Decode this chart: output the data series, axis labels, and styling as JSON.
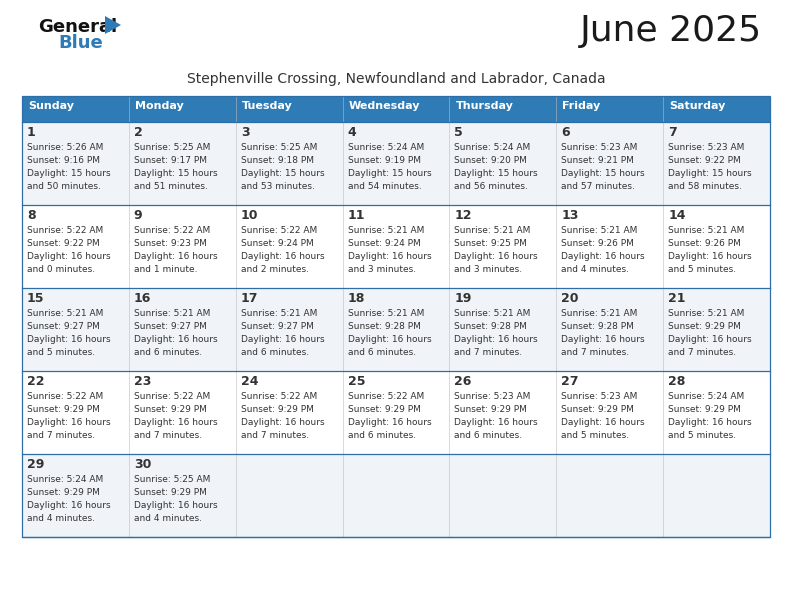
{
  "title": "June 2025",
  "subtitle": "Stephenville Crossing, Newfoundland and Labrador, Canada",
  "header_bg": "#2E7BB5",
  "header_text": "#FFFFFF",
  "row_bg_light": "#F0F4F8",
  "row_bg_white": "#FFFFFF",
  "border_color": "#2E6EA6",
  "text_color": "#333333",
  "days_of_week": [
    "Sunday",
    "Monday",
    "Tuesday",
    "Wednesday",
    "Thursday",
    "Friday",
    "Saturday"
  ],
  "weeks": [
    [
      {
        "day": 1,
        "sunrise": "5:26 AM",
        "sunset": "9:16 PM",
        "daylight": "15 hours and 50 minutes."
      },
      {
        "day": 2,
        "sunrise": "5:25 AM",
        "sunset": "9:17 PM",
        "daylight": "15 hours and 51 minutes."
      },
      {
        "day": 3,
        "sunrise": "5:25 AM",
        "sunset": "9:18 PM",
        "daylight": "15 hours and 53 minutes."
      },
      {
        "day": 4,
        "sunrise": "5:24 AM",
        "sunset": "9:19 PM",
        "daylight": "15 hours and 54 minutes."
      },
      {
        "day": 5,
        "sunrise": "5:24 AM",
        "sunset": "9:20 PM",
        "daylight": "15 hours and 56 minutes."
      },
      {
        "day": 6,
        "sunrise": "5:23 AM",
        "sunset": "9:21 PM",
        "daylight": "15 hours and 57 minutes."
      },
      {
        "day": 7,
        "sunrise": "5:23 AM",
        "sunset": "9:22 PM",
        "daylight": "15 hours and 58 minutes."
      }
    ],
    [
      {
        "day": 8,
        "sunrise": "5:22 AM",
        "sunset": "9:22 PM",
        "daylight": "16 hours and 0 minutes."
      },
      {
        "day": 9,
        "sunrise": "5:22 AM",
        "sunset": "9:23 PM",
        "daylight": "16 hours and 1 minute."
      },
      {
        "day": 10,
        "sunrise": "5:22 AM",
        "sunset": "9:24 PM",
        "daylight": "16 hours and 2 minutes."
      },
      {
        "day": 11,
        "sunrise": "5:21 AM",
        "sunset": "9:24 PM",
        "daylight": "16 hours and 3 minutes."
      },
      {
        "day": 12,
        "sunrise": "5:21 AM",
        "sunset": "9:25 PM",
        "daylight": "16 hours and 3 minutes."
      },
      {
        "day": 13,
        "sunrise": "5:21 AM",
        "sunset": "9:26 PM",
        "daylight": "16 hours and 4 minutes."
      },
      {
        "day": 14,
        "sunrise": "5:21 AM",
        "sunset": "9:26 PM",
        "daylight": "16 hours and 5 minutes."
      }
    ],
    [
      {
        "day": 15,
        "sunrise": "5:21 AM",
        "sunset": "9:27 PM",
        "daylight": "16 hours and 5 minutes."
      },
      {
        "day": 16,
        "sunrise": "5:21 AM",
        "sunset": "9:27 PM",
        "daylight": "16 hours and 6 minutes."
      },
      {
        "day": 17,
        "sunrise": "5:21 AM",
        "sunset": "9:27 PM",
        "daylight": "16 hours and 6 minutes."
      },
      {
        "day": 18,
        "sunrise": "5:21 AM",
        "sunset": "9:28 PM",
        "daylight": "16 hours and 6 minutes."
      },
      {
        "day": 19,
        "sunrise": "5:21 AM",
        "sunset": "9:28 PM",
        "daylight": "16 hours and 7 minutes."
      },
      {
        "day": 20,
        "sunrise": "5:21 AM",
        "sunset": "9:28 PM",
        "daylight": "16 hours and 7 minutes."
      },
      {
        "day": 21,
        "sunrise": "5:21 AM",
        "sunset": "9:29 PM",
        "daylight": "16 hours and 7 minutes."
      }
    ],
    [
      {
        "day": 22,
        "sunrise": "5:22 AM",
        "sunset": "9:29 PM",
        "daylight": "16 hours and 7 minutes."
      },
      {
        "day": 23,
        "sunrise": "5:22 AM",
        "sunset": "9:29 PM",
        "daylight": "16 hours and 7 minutes."
      },
      {
        "day": 24,
        "sunrise": "5:22 AM",
        "sunset": "9:29 PM",
        "daylight": "16 hours and 7 minutes."
      },
      {
        "day": 25,
        "sunrise": "5:22 AM",
        "sunset": "9:29 PM",
        "daylight": "16 hours and 6 minutes."
      },
      {
        "day": 26,
        "sunrise": "5:23 AM",
        "sunset": "9:29 PM",
        "daylight": "16 hours and 6 minutes."
      },
      {
        "day": 27,
        "sunrise": "5:23 AM",
        "sunset": "9:29 PM",
        "daylight": "16 hours and 5 minutes."
      },
      {
        "day": 28,
        "sunrise": "5:24 AM",
        "sunset": "9:29 PM",
        "daylight": "16 hours and 5 minutes."
      }
    ],
    [
      {
        "day": 29,
        "sunrise": "5:24 AM",
        "sunset": "9:29 PM",
        "daylight": "16 hours and 4 minutes."
      },
      {
        "day": 30,
        "sunrise": "5:25 AM",
        "sunset": "9:29 PM",
        "daylight": "16 hours and 4 minutes."
      },
      null,
      null,
      null,
      null,
      null
    ]
  ],
  "fig_width": 7.92,
  "fig_height": 6.12,
  "dpi": 100
}
